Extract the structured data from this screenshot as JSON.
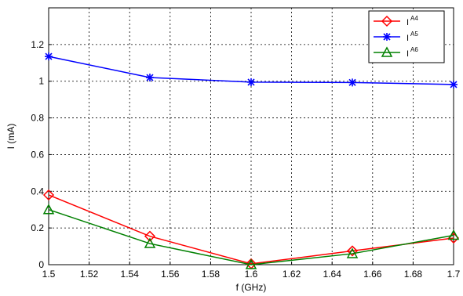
{
  "chart_data": {
    "type": "line",
    "xlabel": "f (GHz)",
    "ylabel": "I (mA)",
    "xlim": [
      1.5,
      1.7
    ],
    "ylim": [
      0,
      1.4
    ],
    "x": [
      1.5,
      1.55,
      1.6,
      1.65,
      1.7
    ],
    "x_ticks": [
      "1.5",
      "1.52",
      "1.54",
      "1.56",
      "1.58",
      "1.6",
      "1.62",
      "1.64",
      "1.66",
      "1.68",
      "1.7"
    ],
    "y_ticks": [
      "0",
      "0.2",
      "0.4",
      "0.6",
      "0.8",
      "1",
      "1.2"
    ],
    "grid": true,
    "legend_position": "top-right",
    "series": [
      {
        "name": "I",
        "superscript": "A4",
        "color": "#ff0000",
        "marker": "diamond",
        "values": [
          0.38,
          0.155,
          0.005,
          0.075,
          0.145
        ]
      },
      {
        "name": "I",
        "superscript": "A5",
        "color": "#0000ff",
        "marker": "asterisk",
        "values": [
          1.135,
          1.02,
          0.995,
          0.993,
          0.982
        ]
      },
      {
        "name": "I",
        "superscript": "A6",
        "color": "#008000",
        "marker": "triangle",
        "values": [
          0.3,
          0.115,
          0.0,
          0.06,
          0.16
        ]
      }
    ]
  }
}
